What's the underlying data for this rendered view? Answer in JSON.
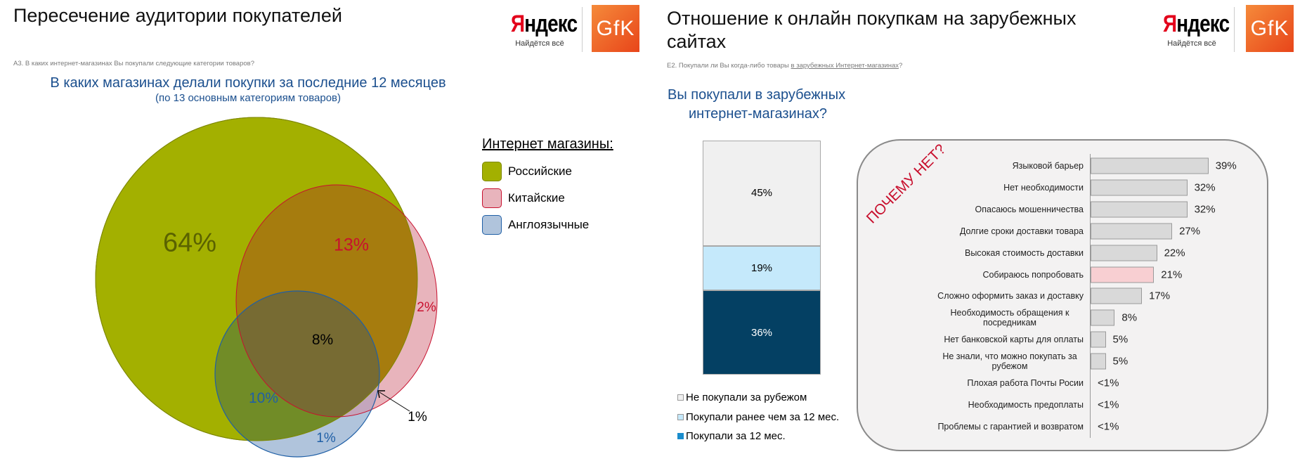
{
  "left": {
    "title": "Пересечение аудитории покупателей",
    "question": "А3. В каких интернет-магазинах Вы покупали следующие категории товаров?",
    "heading": "В каких магазинах делали покупки за последние 12 месяцев",
    "subheading": "(по 13 основным категориям товаров)",
    "logos": {
      "yandex_y": "Я",
      "yandex_rest": "ндекс",
      "yandex_tagline": "Найдётся всё",
      "gfk": "GfK"
    }
  },
  "right": {
    "title_line1": "Отношение к онлайн покупкам на зарубежных",
    "title_line2": "сайтах",
    "question_prefix": "Е2. Покупали ли Вы когда-либо товары ",
    "question_link": "в зарубежных Интернет-магазинах",
    "question_suffix": "?",
    "heading_line1": "Вы покупали в зарубежных",
    "heading_line2": "интернет-магазинах?",
    "why_label": "ПОЧЕМУ НЕТ?",
    "logos": {
      "yandex_y": "Я",
      "yandex_rest": "ндекс",
      "yandex_tagline": "Найдётся всё",
      "gfk": "GfK"
    }
  },
  "chart_data": [
    {
      "type": "venn",
      "legend_title": "Интернет магазины:",
      "sets": [
        {
          "name": "Российские",
          "color": "#a3b000",
          "stroke": "#7d8700"
        },
        {
          "name": "Китайские",
          "color": "#e8b4bc",
          "stroke": "#c8102e"
        },
        {
          "name": "Англоязычные",
          "color": "#b0c4dc",
          "stroke": "#1f5fa6"
        }
      ],
      "regions": {
        "russian_only": "64%",
        "russian_chinese": "13%",
        "chinese_only": "2%",
        "all_three": "8%",
        "russian_english": "10%",
        "english_only": "1%",
        "chinese_english": "1%"
      },
      "legend_placement": "right"
    },
    {
      "type": "bar",
      "stacked": true,
      "categories": [
        "Вы покупали в зарубежных интернет-магазинах?"
      ],
      "series": [
        {
          "name": "Не покупали за рубежом",
          "value": 45,
          "label": "45%",
          "color": "#f0f0f0",
          "text_color": "#000000"
        },
        {
          "name": "Покупали ранее чем за 12 мес.",
          "value": 19,
          "label": "19%",
          "color": "#c5e9fb",
          "text_color": "#000000"
        },
        {
          "name": "Покупали за 12 мес.",
          "value": 36,
          "label": "36%",
          "color": "#044063",
          "text_color": "#ffffff"
        }
      ],
      "legend_markers": [
        "#f0f0f0",
        "#c5e9fb",
        "#1a8ccc"
      ],
      "legend_placement": "bottom"
    },
    {
      "type": "bar",
      "orientation": "horizontal",
      "title": "ПОЧЕМУ НЕТ?",
      "categories": [
        "Языковой барьер",
        "Нет необходимости",
        "Опасаюсь мошенничества",
        "Долгие сроки доставки товара",
        "Высокая стоимость доставки",
        "Собираюсь попробовать",
        "Сложно оформить заказ и доставку",
        "Необходимость обращения к посредникам",
        "Нет банковской карты для оплаты",
        "Не знали, что можно покупать за рубежом",
        "Плохая работа Почты Росии",
        "Необходимость предоплаты",
        "Проблемы с гарантией и возвратом"
      ],
      "values": [
        39,
        32,
        32,
        27,
        22,
        21,
        17,
        8,
        5,
        5,
        0.5,
        0.5,
        0.5
      ],
      "value_labels": [
        "39%",
        "32%",
        "32%",
        "27%",
        "22%",
        "21%",
        "17%",
        "8%",
        "5%",
        "5%",
        "<1%",
        "<1%",
        "<1%"
      ],
      "bar_color": "#d9d9d9",
      "highlight_index": 5,
      "highlight_color": "#f8cfd2"
    }
  ]
}
